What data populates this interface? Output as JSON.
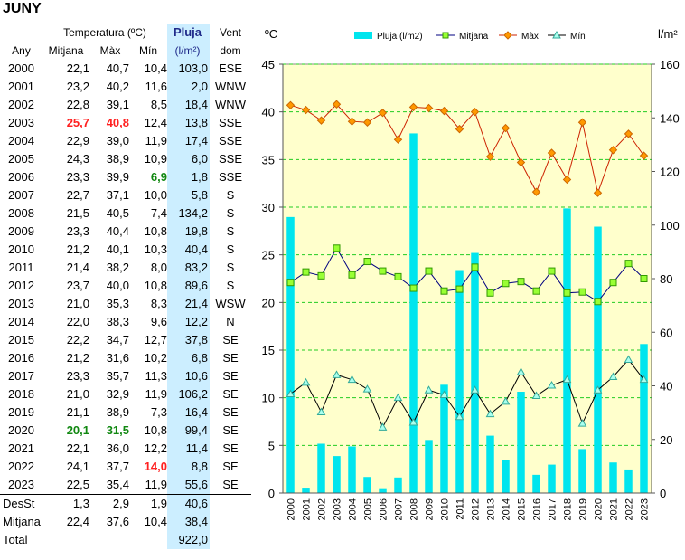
{
  "title": "JUNY",
  "table": {
    "group_header": "Temperatura (ºC)",
    "headers": {
      "any": "Any",
      "mitjana": "Mitjana",
      "max": "Màx",
      "min": "Mín",
      "pluja": "Pluja",
      "pluja_unit": "(l/m²)",
      "vent_1": "Vent",
      "vent_2": "dom"
    },
    "rows": [
      {
        "any": "2000",
        "mit": "22,1",
        "max": "40,7",
        "min": "10,4",
        "plu": "103,0",
        "ven": "ESE"
      },
      {
        "any": "2001",
        "mit": "23,2",
        "max": "40,2",
        "min": "11,6",
        "plu": "2,0",
        "ven": "WNW"
      },
      {
        "any": "2002",
        "mit": "22,8",
        "max": "39,1",
        "min": "8,5",
        "plu": "18,4",
        "ven": "WNW"
      },
      {
        "any": "2003",
        "mit": "25,7",
        "max": "40,8",
        "min": "12,4",
        "plu": "13,8",
        "ven": "SSE",
        "mitCls": "red",
        "maxCls": "red"
      },
      {
        "any": "2004",
        "mit": "22,9",
        "max": "39,0",
        "min": "11,9",
        "plu": "17,4",
        "ven": "SSE"
      },
      {
        "any": "2005",
        "mit": "24,3",
        "max": "38,9",
        "min": "10,9",
        "plu": "6,0",
        "ven": "SSE"
      },
      {
        "any": "2006",
        "mit": "23,3",
        "max": "39,9",
        "min": "6,9",
        "plu": "1,8",
        "ven": "SSE",
        "minCls": "green"
      },
      {
        "any": "2007",
        "mit": "22,7",
        "max": "37,1",
        "min": "10,0",
        "plu": "5,8",
        "ven": "S"
      },
      {
        "any": "2008",
        "mit": "21,5",
        "max": "40,5",
        "min": "7,4",
        "plu": "134,2",
        "ven": "S"
      },
      {
        "any": "2009",
        "mit": "23,3",
        "max": "40,4",
        "min": "10,8",
        "plu": "19,8",
        "ven": "S"
      },
      {
        "any": "2010",
        "mit": "21,2",
        "max": "40,1",
        "min": "10,3",
        "plu": "40,4",
        "ven": "S"
      },
      {
        "any": "2011",
        "mit": "21,4",
        "max": "38,2",
        "min": "8,0",
        "plu": "83,2",
        "ven": "S"
      },
      {
        "any": "2012",
        "mit": "23,7",
        "max": "40,0",
        "min": "10,8",
        "plu": "89,6",
        "ven": "S"
      },
      {
        "any": "2013",
        "mit": "21,0",
        "max": "35,3",
        "min": "8,3",
        "plu": "21,4",
        "ven": "WSW"
      },
      {
        "any": "2014",
        "mit": "22,0",
        "max": "38,3",
        "min": "9,6",
        "plu": "12,2",
        "ven": "N"
      },
      {
        "any": "2015",
        "mit": "22,2",
        "max": "34,7",
        "min": "12,7",
        "plu": "37,8",
        "ven": "SE"
      },
      {
        "any": "2016",
        "mit": "21,2",
        "max": "31,6",
        "min": "10,2",
        "plu": "6,8",
        "ven": "SE"
      },
      {
        "any": "2017",
        "mit": "23,3",
        "max": "35,7",
        "min": "11,3",
        "plu": "10,6",
        "ven": "SE"
      },
      {
        "any": "2018",
        "mit": "21,0",
        "max": "32,9",
        "min": "11,9",
        "plu": "106,2",
        "ven": "SE"
      },
      {
        "any": "2019",
        "mit": "21,1",
        "max": "38,9",
        "min": "7,3",
        "plu": "16,4",
        "ven": "SE"
      },
      {
        "any": "2020",
        "mit": "20,1",
        "max": "31,5",
        "min": "10,8",
        "plu": "99,4",
        "ven": "SE",
        "mitCls": "green",
        "maxCls": "green"
      },
      {
        "any": "2021",
        "mit": "22,1",
        "max": "36,0",
        "min": "12,2",
        "plu": "11,4",
        "ven": "SE"
      },
      {
        "any": "2022",
        "mit": "24,1",
        "max": "37,7",
        "min": "14,0",
        "plu": "8,8",
        "ven": "SE",
        "minCls": "red"
      },
      {
        "any": "2023",
        "mit": "22,5",
        "max": "35,4",
        "min": "11,9",
        "plu": "55,6",
        "ven": "SE"
      }
    ],
    "footer": [
      {
        "label": "DesSt",
        "mit": "1,3",
        "max": "2,9",
        "min": "1,9",
        "plu": "40,6"
      },
      {
        "label": "Mitjana",
        "mit": "22,4",
        "max": "37,6",
        "min": "10,4",
        "plu": "38,4"
      },
      {
        "label": "Total",
        "plu": "922,0"
      }
    ]
  },
  "chart_data": {
    "type": "bar",
    "left_unit": "ºC",
    "right_unit": "l/m²",
    "categories": [
      "2000",
      "2001",
      "2002",
      "2003",
      "2004",
      "2005",
      "2006",
      "2007",
      "2008",
      "2009",
      "2010",
      "2011",
      "2012",
      "2013",
      "2014",
      "2015",
      "2016",
      "2017",
      "2018",
      "2019",
      "2020",
      "2021",
      "2022",
      "2023"
    ],
    "y_left": {
      "min": 0,
      "max": 45,
      "ticks": [
        0,
        5,
        10,
        15,
        20,
        25,
        30,
        35,
        40,
        45
      ]
    },
    "y_right": {
      "min": 0,
      "max": 160,
      "ticks": [
        0,
        20,
        40,
        60,
        80,
        100,
        120,
        140,
        160
      ]
    },
    "grid": true,
    "legend_position": "top",
    "series": [
      {
        "name": "Pluja (l/m2)",
        "type": "bar",
        "axis": "right",
        "color": "#00e5ee",
        "values": [
          103.0,
          2.0,
          18.4,
          13.8,
          17.4,
          6.0,
          1.8,
          5.8,
          134.2,
          19.8,
          40.4,
          83.2,
          89.6,
          21.4,
          12.2,
          37.8,
          6.8,
          10.6,
          106.2,
          16.4,
          99.4,
          11.4,
          8.8,
          55.6
        ]
      },
      {
        "name": "Mitjana",
        "type": "line",
        "axis": "left",
        "color": "#000080",
        "marker_fill": "#99ff33",
        "marker_stroke": "#339900",
        "values": [
          22.1,
          23.2,
          22.8,
          25.7,
          22.9,
          24.3,
          23.3,
          22.7,
          21.5,
          23.3,
          21.2,
          21.4,
          23.7,
          21.0,
          22.0,
          22.2,
          21.2,
          23.3,
          21.0,
          21.1,
          20.1,
          22.1,
          24.1,
          22.5
        ]
      },
      {
        "name": "Màx",
        "type": "line",
        "axis": "left",
        "color": "#cc2200",
        "marker_fill": "#ff9900",
        "marker_stroke": "#cc6600",
        "values": [
          40.7,
          40.2,
          39.1,
          40.8,
          39.0,
          38.9,
          39.9,
          37.1,
          40.5,
          40.4,
          40.1,
          38.2,
          40.0,
          35.3,
          38.3,
          34.7,
          31.6,
          35.7,
          32.9,
          38.9,
          31.5,
          36.0,
          37.7,
          35.4
        ]
      },
      {
        "name": "Mín",
        "type": "line",
        "axis": "left",
        "color": "#000000",
        "marker_fill": "#aaffee",
        "marker_stroke": "#33aa99",
        "values": [
          10.4,
          11.6,
          8.5,
          12.4,
          11.9,
          10.9,
          6.9,
          10.0,
          7.4,
          10.8,
          10.3,
          8.0,
          10.8,
          8.3,
          9.6,
          12.7,
          10.2,
          11.3,
          11.9,
          7.3,
          10.8,
          12.2,
          14.0,
          11.9
        ]
      }
    ],
    "colors": {
      "plot_bg": "#ffffcc",
      "grid": "#22cc22",
      "pluja_column_bg": "#cceeff"
    }
  }
}
